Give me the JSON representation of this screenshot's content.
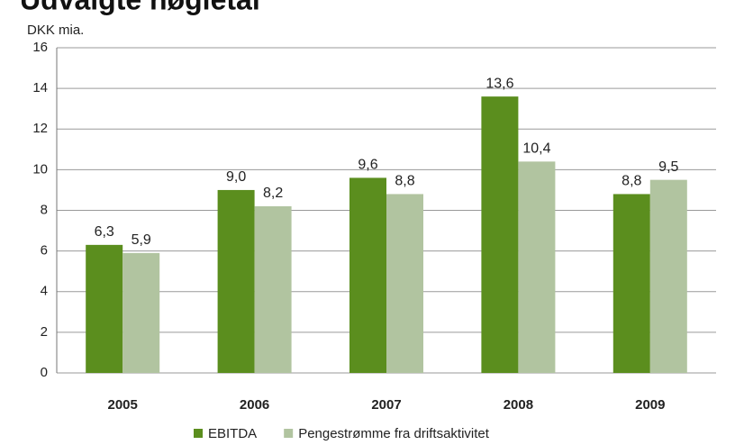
{
  "chart_data": {
    "type": "bar",
    "title": "Udvalgte nøgletal",
    "y_label": "DKK mia.",
    "categories": [
      "2005",
      "2006",
      "2007",
      "2008",
      "2009"
    ],
    "series": [
      {
        "name": "EBITDA",
        "color": "#5b8e1e",
        "values": [
          6.3,
          9.0,
          9.6,
          13.6,
          8.8
        ],
        "value_labels": [
          "6,3",
          "9,0",
          "9,6",
          "13,6",
          "8,8"
        ]
      },
      {
        "name": "Pengestrømme fra driftsaktivitet",
        "color": "#b1c4a0",
        "values": [
          5.9,
          8.2,
          8.8,
          10.4,
          9.5
        ],
        "value_labels": [
          "5,9",
          "8,2",
          "8,8",
          "10,4",
          "9,5"
        ]
      }
    ],
    "ylim": [
      0,
      16
    ],
    "yticks": [
      0,
      2,
      4,
      6,
      8,
      10,
      12,
      14,
      16
    ],
    "grid": true,
    "legend": "bottom"
  }
}
